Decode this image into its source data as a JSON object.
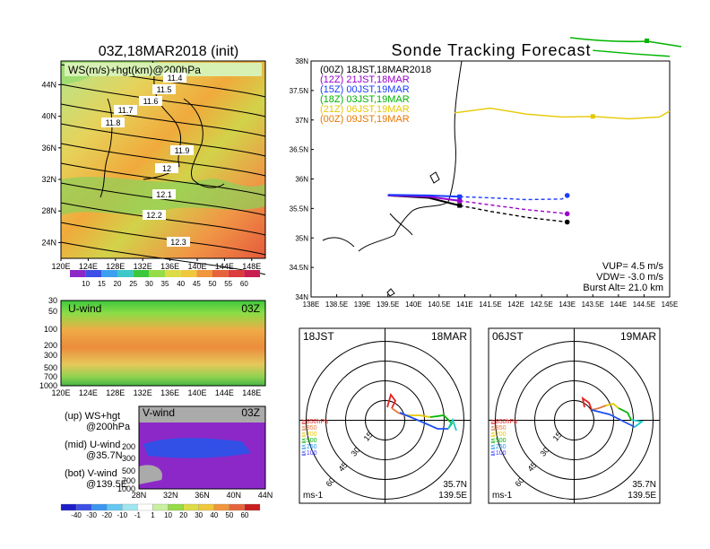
{
  "header": {
    "left_title": "03Z,18MAR2018 (init)",
    "right_title": "Sonde Tracking Forecast"
  },
  "colors": {
    "series_00Z": "#000000",
    "series_12Z": "#9900cc",
    "series_15Z": "#1a3cff",
    "series_18Z": "#00b400",
    "series_21Z": "#e6c800",
    "series_00Z_b": "#e67800",
    "coast": "#000000"
  },
  "chart_data": [
    {
      "type": "heatmap",
      "id": "ws_map",
      "title": "WS(m/s)+hgt(km)@200hPa",
      "x_ticks": [
        "120E",
        "124E",
        "128E",
        "132E",
        "136E",
        "140E",
        "144E",
        "148E"
      ],
      "y_ticks": [
        "24N",
        "28N",
        "32N",
        "36N",
        "40N",
        "44N"
      ],
      "xlim": [
        120,
        150
      ],
      "ylim": [
        22,
        47
      ],
      "contour_labels": [
        "11.4",
        "11.5",
        "11.6",
        "11.7",
        "11.8",
        "11.9",
        "12",
        "12.1",
        "12.2",
        "12.3"
      ],
      "colorbar": [
        "10",
        "15",
        "20",
        "25",
        "30",
        "35",
        "40",
        "45",
        "50",
        "55",
        "60"
      ]
    },
    {
      "type": "heatmap",
      "id": "u_wind",
      "title": "U-wind",
      "time_label": "03Z",
      "y_ticks": [
        "30",
        "50",
        "100",
        "200",
        "300",
        "500",
        "700",
        "1000"
      ],
      "x_ticks": [
        "120E",
        "124E",
        "128E",
        "132E",
        "136E",
        "140E",
        "144E",
        "148E"
      ]
    },
    {
      "type": "heatmap",
      "id": "v_wind",
      "title": "V-wind",
      "time_label": "03Z",
      "y_ticks": [
        "200",
        "300",
        "500",
        "700",
        "1000"
      ],
      "x_ticks": [
        "28N",
        "32N",
        "36N",
        "40N",
        "44N"
      ],
      "colorbar": [
        "-40",
        "-30",
        "-20",
        "-10",
        "-1",
        "1",
        "10",
        "20",
        "30",
        "40",
        "50",
        "60"
      ]
    },
    {
      "type": "line",
      "id": "track_map",
      "x_ticks": [
        "138E",
        "138.5E",
        "139E",
        "139.5E",
        "140E",
        "140.5E",
        "141E",
        "141.5E",
        "142E",
        "142.5E",
        "143E",
        "143.5E",
        "144E",
        "144.5E",
        "145E"
      ],
      "y_ticks": [
        "34N",
        "34.5N",
        "35N",
        "35.5N",
        "36N",
        "36.5N",
        "37N",
        "37.5N",
        "38N"
      ],
      "xlim": [
        138,
        145
      ],
      "ylim": [
        34,
        38
      ],
      "legend": [
        {
          "name": "(00Z)  18JST,18MAR2018",
          "key": "series_00Z"
        },
        {
          "name": "(12Z)  21JST,18MAR",
          "key": "series_12Z"
        },
        {
          "name": "(15Z)  00JST,19MAR",
          "key": "series_15Z"
        },
        {
          "name": "(18Z)  03JST,19MAR",
          "key": "series_18Z"
        },
        {
          "name": "(21Z)  06JST,19MAR",
          "key": "series_21Z"
        },
        {
          "name": "(00Z)  09JST,19MAR",
          "key": "series_00Z_b"
        }
      ],
      "series": [
        {
          "key": "series_00Z",
          "x": [
            139.5,
            140.3,
            140.9,
            141.5,
            142.2,
            142.9,
            143.0
          ],
          "y": [
            35.72,
            35.68,
            35.55,
            35.45,
            35.35,
            35.28,
            35.27
          ]
        },
        {
          "key": "series_12Z",
          "x": [
            139.5,
            140.3,
            140.9,
            141.5,
            142.2,
            142.9,
            143.0
          ],
          "y": [
            35.72,
            35.7,
            35.63,
            35.56,
            35.48,
            35.42,
            35.41
          ]
        },
        {
          "key": "series_15Z",
          "x": [
            139.5,
            140.3,
            140.9,
            141.5,
            142.2,
            142.9,
            143.0
          ],
          "y": [
            35.73,
            35.72,
            35.7,
            35.68,
            35.65,
            35.66,
            35.72
          ]
        },
        {
          "key": "series_18Z",
          "x": [
            143.5,
            144.3,
            145.0
          ],
          "y": [
            38.18,
            38.12,
            38.08
          ]
        },
        {
          "key": "series_21Z",
          "x": [
            140.8,
            141.5,
            142.2,
            142.9,
            143.5,
            144.2,
            144.8,
            145.0
          ],
          "y": [
            37.12,
            37.2,
            37.1,
            37.05,
            37.06,
            37.02,
            37.05,
            37.15
          ]
        }
      ],
      "vup": "VUP=  4.5 m/s",
      "vdw": "VDW=  -3.0 m/s",
      "burst": "Burst Alt=  21.0 km"
    },
    {
      "type": "line",
      "id": "hodo_1",
      "corner_left": "18JST",
      "corner_right": "18MAR",
      "ring_labels": [
        "15",
        "30",
        "45",
        "60"
      ],
      "levels": [
        "≧850hPa",
        "≦850",
        "≦700",
        "≦500",
        "≦250",
        "≦100"
      ],
      "unit": "ms-1",
      "loc_lat": "35.7N",
      "loc_lon": "139.5E"
    },
    {
      "type": "line",
      "id": "hodo_2",
      "corner_left": "06JST",
      "corner_right": "19MAR",
      "ring_labels": [
        "15",
        "30",
        "45",
        "60"
      ],
      "levels": [
        "≧850hPa",
        "≦850",
        "≦700",
        "≦500",
        "≦250",
        "≦100"
      ],
      "unit": "ms-1",
      "loc_lat": "35.7N",
      "loc_lon": "139.5E"
    }
  ],
  "notes": {
    "line1a": "(up) WS+hgt",
    "line1b": "@200hPa",
    "line2a": "(mid) U-wind",
    "line2b": "@35.7N",
    "line3a": "(bot) V-wind",
    "line3b": "@139.5E"
  }
}
